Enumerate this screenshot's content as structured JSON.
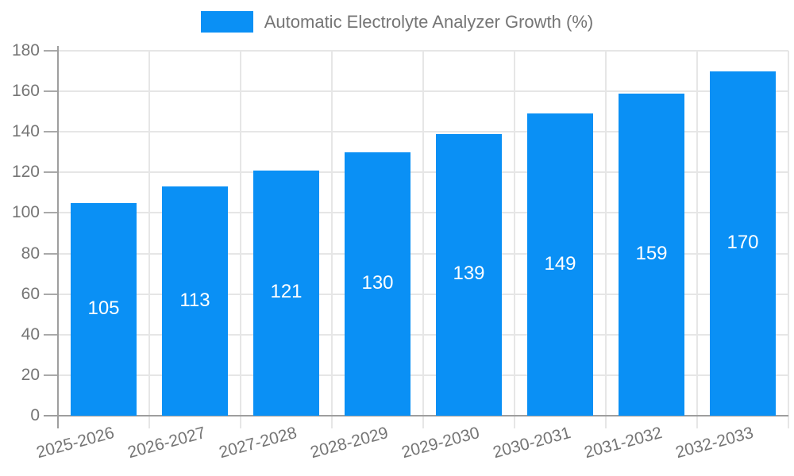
{
  "chart_data": {
    "type": "bar",
    "legend": "Automatic Electrolyte Analyzer Growth (%)",
    "legend_position": "top-center",
    "categories": [
      "2025-2026",
      "2026-2027",
      "2027-2028",
      "2028-2029",
      "2029-2030",
      "2030-2031",
      "2031-2032",
      "2032-2033"
    ],
    "values": [
      105,
      113,
      121,
      130,
      139,
      149,
      159,
      170
    ],
    "value_labels_inside_bars": true,
    "xlabel": "",
    "ylabel": "",
    "ylim": [
      0,
      180
    ],
    "y_ticks": [
      0,
      20,
      40,
      60,
      80,
      100,
      120,
      140,
      160,
      180
    ],
    "x_label_rotation_deg": -15,
    "grid": "horizontal-and-vertical",
    "colors": {
      "bar": "#0a90f5",
      "axis_text": "#757575",
      "bar_value_text": "#ffffff",
      "gridline": "#e6e6e6",
      "axis_line": "#9e9e9e",
      "tick_mark": "#aaaaaa",
      "background": "#ffffff"
    }
  }
}
